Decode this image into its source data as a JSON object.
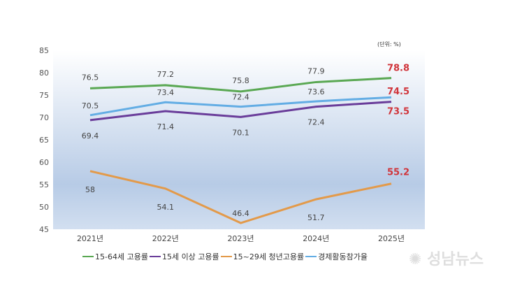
{
  "chart_data": {
    "type": "line",
    "unit_label": "(단위: %)",
    "categories": [
      "2021년",
      "2022년",
      "2023년",
      "2024년",
      "2025년"
    ],
    "ylim": [
      45,
      85
    ],
    "yticks": [
      45,
      50,
      55,
      60,
      65,
      70,
      75,
      80,
      85
    ],
    "grid": false,
    "legend_position": "bottom",
    "series": [
      {
        "name": "15-64세 고용률",
        "color": "#5aa853",
        "values": [
          76.5,
          77.2,
          75.8,
          77.9,
          78.8
        ],
        "labels": [
          "76.5",
          "77.2",
          "75.8",
          "77.9",
          "78.8"
        ]
      },
      {
        "name": "15세 이상 고용률",
        "color": "#6a3d9a",
        "values": [
          69.4,
          71.4,
          70.1,
          72.4,
          73.5
        ],
        "labels": [
          "69.4",
          "71.4",
          "70.1",
          "72.4",
          "73.5"
        ]
      },
      {
        "name": "15~29세 청년고용률",
        "color": "#e39a4a",
        "values": [
          58,
          54.1,
          46.4,
          51.7,
          55.2
        ],
        "labels": [
          "58",
          "54.1",
          "46.4",
          "51.7",
          "55.2"
        ]
      },
      {
        "name": "경제활동참가율",
        "color": "#63ade4",
        "values": [
          70.5,
          73.4,
          72.4,
          73.6,
          74.5
        ],
        "labels": [
          "70.5",
          "73.4",
          "72.4",
          "73.6",
          "74.5"
        ]
      }
    ],
    "highlight_color": "#d0343a"
  },
  "watermark": "성남뉴스"
}
